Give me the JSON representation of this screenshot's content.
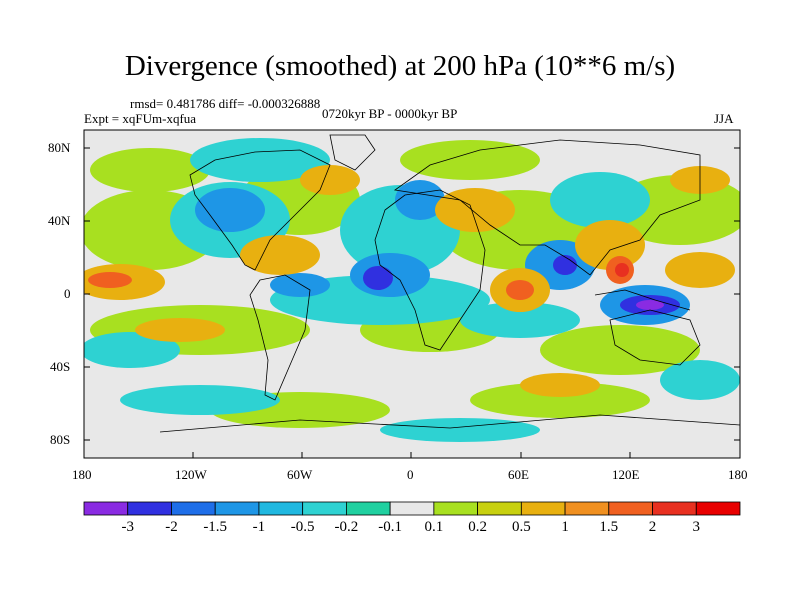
{
  "title": "Divergence (smoothed) at 200 hPa (10**6 m/s)",
  "stats": "rmsd= 0.481786 diff= -0.000326888",
  "experiment": "Expt = xqFUm-xqfua",
  "period": "0720kyr BP - 0000kyr BP",
  "season": "JJA",
  "lat_labels": [
    "80N",
    "40N",
    "0",
    "40S",
    "80S"
  ],
  "lon_labels": [
    "180",
    "120W",
    "60W",
    "0",
    "60E",
    "120E",
    "180"
  ],
  "colorbar": {
    "labels": [
      "-3",
      "-2",
      "-1.5",
      "-1",
      "-0.5",
      "-0.2",
      "-0.1",
      "0.1",
      "0.2",
      "0.5",
      "1",
      "1.5",
      "2",
      "3"
    ],
    "colors": [
      "#8a2be2",
      "#3030e0",
      "#1e6ee8",
      "#1e96e6",
      "#20b8e0",
      "#2ed2d2",
      "#20d0a0",
      "#e8e8e8",
      "#a8e020",
      "#c8d010",
      "#e8b010",
      "#f09020",
      "#f06020",
      "#e83020",
      "#e80000"
    ]
  },
  "palette": {
    "neg_strong": "#3030e0",
    "neg_mid": "#1e96e6",
    "neg_weak": "#2ed2d2",
    "zero": "#e8e8e8",
    "pos_weak": "#a8e020",
    "pos_mid": "#e8b010",
    "pos_strong": "#f06020",
    "pos_max": "#e80000",
    "land_outline": "#000000"
  }
}
